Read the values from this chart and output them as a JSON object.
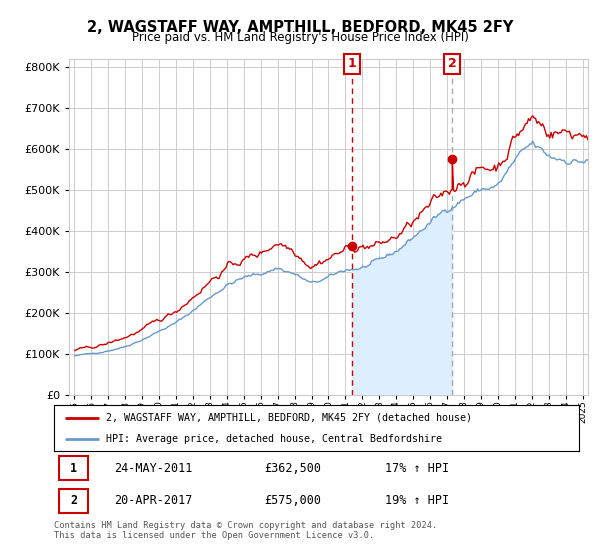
{
  "title": "2, WAGSTAFF WAY, AMPTHILL, BEDFORD, MK45 2FY",
  "subtitle": "Price paid vs. HM Land Registry's House Price Index (HPI)",
  "legend_line1": "2, WAGSTAFF WAY, AMPTHILL, BEDFORD, MK45 2FY (detached house)",
  "legend_line2": "HPI: Average price, detached house, Central Bedfordshire",
  "annotation1_label": "1",
  "annotation1_date": "24-MAY-2011",
  "annotation1_price": "£362,500",
  "annotation1_hpi": "17% ↑ HPI",
  "annotation2_label": "2",
  "annotation2_date": "20-APR-2017",
  "annotation2_price": "£575,000",
  "annotation2_hpi": "19% ↑ HPI",
  "footnote": "Contains HM Land Registry data © Crown copyright and database right 2024.\nThis data is licensed under the Open Government Licence v3.0.",
  "red_line_color": "#cc0000",
  "blue_line_color": "#6699cc",
  "blue_fill_color": "#ddeeff",
  "background_color": "#ffffff",
  "grid_color": "#cccccc",
  "vline1_color": "#cc0000",
  "vline2_color": "#aaaaaa",
  "annotation_box_edgecolor": "#cc0000",
  "annotation_box_facecolor": "#ffffff",
  "annotation_text_color": "#cc0000",
  "ylim": [
    0,
    820000
  ],
  "yticks": [
    0,
    100000,
    200000,
    300000,
    400000,
    500000,
    600000,
    700000,
    800000
  ],
  "sale1_x": 2011.38,
  "sale1_y": 362500,
  "sale2_x": 2017.3,
  "sale2_y": 575000,
  "xlim_left": 1994.7,
  "xlim_right": 2025.3
}
